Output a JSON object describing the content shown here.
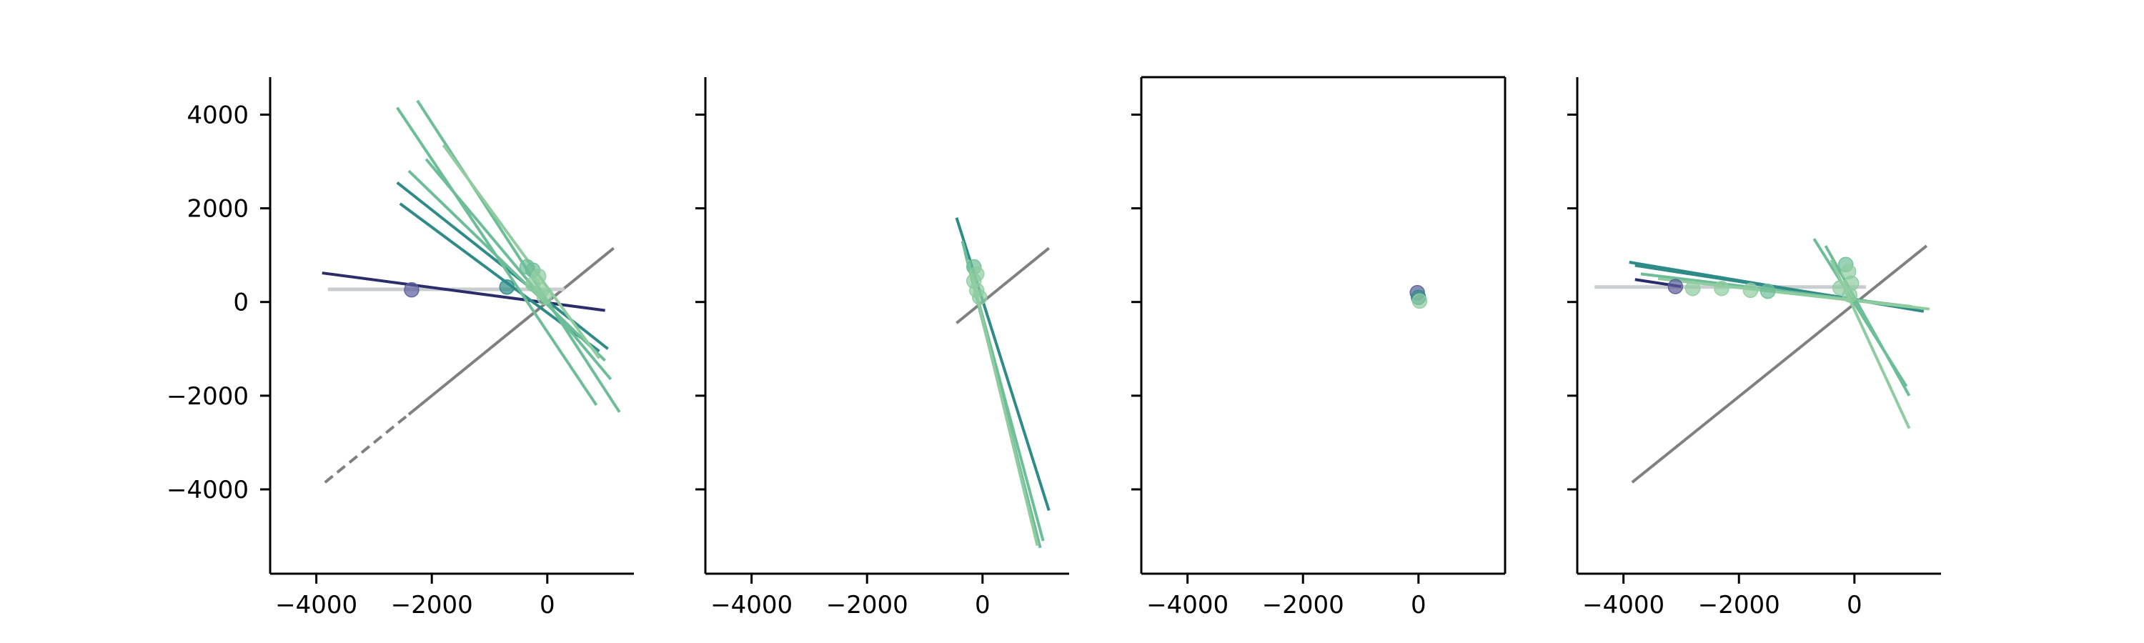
{
  "figure": {
    "colors": {
      "dark_navy": "#2b2d6b",
      "teal": "#2e8b87",
      "green": "#6dbe98",
      "light_green": "#8fcca0",
      "gray": "#808080",
      "light_gray": "#c8cdd0",
      "point_navy": "#5b5e9a"
    }
  },
  "chart_data": [
    {
      "type": "line",
      "panel": 1,
      "xlim": [
        -4800,
        1500
      ],
      "ylim": [
        -5800,
        4800
      ],
      "x_ticks": [
        {
          "v": -4000,
          "label": "−4000"
        },
        {
          "v": -2000,
          "label": "−2000"
        },
        {
          "v": 0,
          "label": "0"
        }
      ],
      "y_ticks": [
        {
          "v": 4000,
          "label": "4000"
        },
        {
          "v": 2000,
          "label": "2000"
        },
        {
          "v": 0,
          "label": "0"
        },
        {
          "v": -2000,
          "label": "−2000"
        },
        {
          "v": -4000,
          "label": "−4000"
        }
      ],
      "spines": "left-bottom",
      "show_ytick_labels": true,
      "diagonal": {
        "from": [
          -3850,
          -3850
        ],
        "to": [
          1150,
          1150
        ],
        "dashed_until": -2400
      },
      "reference_line": {
        "from": [
          -3800,
          270
        ],
        "to": [
          300,
          270
        ]
      },
      "lines": [
        {
          "from": [
            -3900,
            620
          ],
          "to": [
            1000,
            -180
          ],
          "color": "dark_navy"
        },
        {
          "from": [
            -2550,
            2100
          ],
          "to": [
            900,
            -1050
          ],
          "color": "teal"
        },
        {
          "from": [
            -2600,
            2550
          ],
          "to": [
            1050,
            -1000
          ],
          "color": "teal"
        },
        {
          "from": [
            -2400,
            2800
          ],
          "to": [
            1000,
            -1250
          ],
          "color": "green"
        },
        {
          "from": [
            -2600,
            4150
          ],
          "to": [
            850,
            -2200
          ],
          "color": "green"
        },
        {
          "from": [
            -2250,
            4300
          ],
          "to": [
            1250,
            -2350
          ],
          "color": "green"
        },
        {
          "from": [
            -2100,
            3050
          ],
          "to": [
            1100,
            -1650
          ],
          "color": "green"
        },
        {
          "from": [
            -1800,
            3350
          ],
          "to": [
            900,
            -1200
          ],
          "color": "light_green"
        }
      ],
      "points": [
        {
          "x": -2350,
          "y": 260,
          "color": "point_navy"
        },
        {
          "x": -700,
          "y": 320,
          "color": "teal"
        },
        {
          "x": -350,
          "y": 750,
          "color": "green"
        },
        {
          "x": -250,
          "y": 680,
          "color": "green"
        },
        {
          "x": -150,
          "y": 550,
          "color": "light_green"
        },
        {
          "x": -250,
          "y": 380,
          "color": "light_green"
        },
        {
          "x": -100,
          "y": 250,
          "color": "light_green"
        },
        {
          "x": -50,
          "y": 100,
          "color": "light_green"
        }
      ]
    },
    {
      "type": "line",
      "panel": 2,
      "xlim": [
        -4800,
        1500
      ],
      "ylim": [
        -5800,
        4800
      ],
      "x_ticks": [
        {
          "v": -4000,
          "label": "−4000"
        },
        {
          "v": -2000,
          "label": "−2000"
        },
        {
          "v": 0,
          "label": "0"
        }
      ],
      "y_ticks": [
        {
          "v": 4000,
          "label": ""
        },
        {
          "v": 2000,
          "label": ""
        },
        {
          "v": 0,
          "label": ""
        },
        {
          "v": -2000,
          "label": ""
        },
        {
          "v": -4000,
          "label": ""
        }
      ],
      "spines": "left-bottom",
      "show_ytick_labels": false,
      "diagonal": {
        "from": [
          -450,
          -450
        ],
        "to": [
          1150,
          1150
        ]
      },
      "lines": [
        {
          "from": [
            -450,
            1800
          ],
          "to": [
            1150,
            -4450
          ],
          "color": "teal"
        },
        {
          "from": [
            -350,
            1300
          ],
          "to": [
            1050,
            -5100
          ],
          "color": "green"
        },
        {
          "from": [
            -300,
            1050
          ],
          "to": [
            1000,
            -5250
          ],
          "color": "green"
        },
        {
          "from": [
            -250,
            900
          ],
          "to": [
            950,
            -5200
          ],
          "color": "light_green"
        }
      ],
      "points": [
        {
          "x": -150,
          "y": 750,
          "color": "green"
        },
        {
          "x": -100,
          "y": 600,
          "color": "light_green"
        },
        {
          "x": -150,
          "y": 450,
          "color": "light_green"
        },
        {
          "x": -100,
          "y": 250,
          "color": "light_green"
        },
        {
          "x": -50,
          "y": 100,
          "color": "light_green"
        }
      ]
    },
    {
      "type": "scatter",
      "panel": 3,
      "xlim": [
        -4800,
        1500
      ],
      "ylim": [
        -5800,
        4800
      ],
      "x_ticks": [
        {
          "v": -4000,
          "label": "−4000"
        },
        {
          "v": -2000,
          "label": "−2000"
        },
        {
          "v": 0,
          "label": "0"
        }
      ],
      "y_ticks": [
        {
          "v": 4000,
          "label": ""
        },
        {
          "v": 2000,
          "label": ""
        },
        {
          "v": 0,
          "label": ""
        },
        {
          "v": -2000,
          "label": ""
        },
        {
          "v": -4000,
          "label": ""
        }
      ],
      "spines": "all",
      "show_ytick_labels": false,
      "lines": [],
      "points": [
        {
          "x": -20,
          "y": 200,
          "color": "point_navy"
        },
        {
          "x": 0,
          "y": 100,
          "color": "teal"
        },
        {
          "x": 20,
          "y": 20,
          "color": "light_green"
        }
      ]
    },
    {
      "type": "line",
      "panel": 4,
      "xlim": [
        -4800,
        1500
      ],
      "ylim": [
        -5800,
        4800
      ],
      "x_ticks": [
        {
          "v": -4000,
          "label": "−4000"
        },
        {
          "v": -2000,
          "label": "−2000"
        },
        {
          "v": 0,
          "label": "0"
        }
      ],
      "y_ticks": [
        {
          "v": 4000,
          "label": ""
        },
        {
          "v": 2000,
          "label": ""
        },
        {
          "v": 0,
          "label": ""
        },
        {
          "v": -2000,
          "label": ""
        },
        {
          "v": -4000,
          "label": ""
        }
      ],
      "spines": "left-bottom",
      "show_ytick_labels": false,
      "diagonal": {
        "from": [
          -3850,
          -3850
        ],
        "to": [
          1250,
          1200
        ]
      },
      "reference_line": {
        "from": [
          -4500,
          320
        ],
        "to": [
          200,
          320
        ]
      },
      "lines": [
        {
          "from": [
            -3800,
            480
          ],
          "to": [
            -3000,
            330
          ],
          "color": "dark_navy"
        },
        {
          "from": [
            -3900,
            850
          ],
          "to": [
            1200,
            -200
          ],
          "color": "teal"
        },
        {
          "from": [
            -3800,
            780
          ],
          "to": [
            1100,
            -150
          ],
          "color": "teal"
        },
        {
          "from": [
            -3700,
            600
          ],
          "to": [
            1000,
            -100
          ],
          "color": "green"
        },
        {
          "from": [
            -3400,
            500
          ],
          "to": [
            1300,
            -150
          ],
          "color": "light_green"
        },
        {
          "from": [
            -700,
            1350
          ],
          "to": [
            900,
            -1800
          ],
          "color": "green"
        },
        {
          "from": [
            -500,
            1200
          ],
          "to": [
            950,
            -2000
          ],
          "color": "green"
        },
        {
          "from": [
            -400,
            900
          ],
          "to": [
            950,
            -2700
          ],
          "color": "light_green"
        }
      ],
      "points": [
        {
          "x": -3100,
          "y": 330,
          "color": "point_navy"
        },
        {
          "x": -2800,
          "y": 290,
          "color": "light_green"
        },
        {
          "x": -2300,
          "y": 290,
          "color": "light_green"
        },
        {
          "x": -1800,
          "y": 250,
          "color": "light_green"
        },
        {
          "x": -1500,
          "y": 230,
          "color": "green"
        },
        {
          "x": -250,
          "y": 300,
          "color": "light_green"
        },
        {
          "x": -150,
          "y": 800,
          "color": "green"
        },
        {
          "x": -100,
          "y": 650,
          "color": "light_green"
        },
        {
          "x": -50,
          "y": 400,
          "color": "light_green"
        },
        {
          "x": -80,
          "y": 150,
          "color": "light_green"
        }
      ]
    }
  ]
}
